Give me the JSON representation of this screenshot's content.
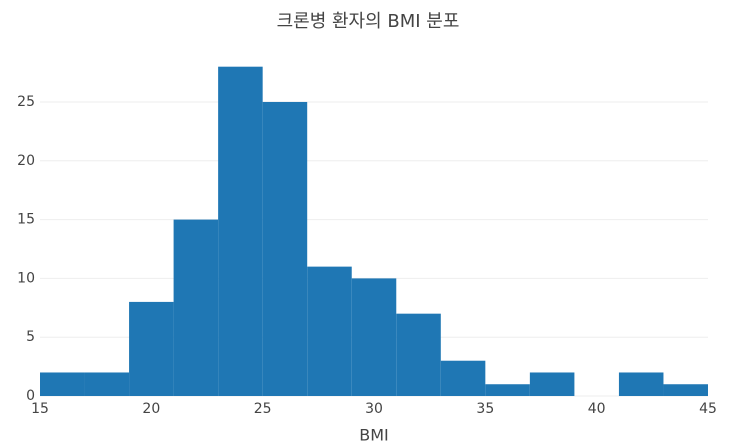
{
  "chart_data": {
    "type": "histogram",
    "title": "크론병 환자의 BMI 분포",
    "x_label": "BMI",
    "bins": [
      15,
      17,
      19,
      21,
      23,
      25,
      27,
      29,
      31,
      33,
      35,
      37,
      39,
      41,
      43,
      45
    ],
    "values": [
      2,
      2,
      8,
      15,
      28,
      25,
      11,
      10,
      7,
      3,
      1,
      2,
      0,
      2,
      1
    ],
    "color": "#1f77b4",
    "xlim": [
      15,
      45
    ],
    "xticks": [
      15,
      20,
      25,
      30,
      35,
      40,
      45
    ],
    "ylim": [
      0,
      29.47
    ],
    "yticks": [
      0,
      5,
      10,
      15,
      20,
      25
    ],
    "grid": true
  }
}
